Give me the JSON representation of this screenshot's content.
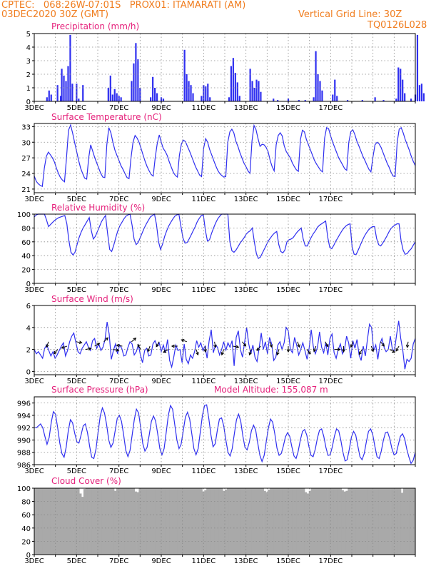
{
  "header": {
    "line1": "CPTEC:   068:26W-07:01S   PROX01: ITAMARATI (AM)",
    "line2": "03DEC2020 30Z (GMT)",
    "grid_note": "Vertical Grid Line: 30Z",
    "code": "TQ0126L028",
    "altitude": "Model Altitude: 155.087 m"
  },
  "colors": {
    "header": "#f07d1f",
    "title": "#e5217b",
    "series": "#2f2ff0",
    "cloud": "#a9a9a9",
    "arrows": "#000000"
  },
  "chart_data": [
    {
      "type": "bar",
      "title": "Precipitation (mm/h)",
      "xlabels": [
        "3DEC",
        "5DEC",
        "7DEC",
        "9DEC",
        "11DEC",
        "13DEC",
        "15DEC",
        "17DEC"
      ],
      "ylim": [
        0,
        5
      ],
      "yticks": [
        0,
        1,
        2,
        3,
        4,
        5
      ],
      "grid": true,
      "bars": [
        [
          0.1,
          0.3
        ],
        [
          0.2,
          0.8
        ],
        [
          0.3,
          0.5
        ],
        [
          0.6,
          1.2
        ],
        [
          0.75,
          0.4
        ],
        [
          0.8,
          2.4
        ],
        [
          0.9,
          1.9
        ],
        [
          1.0,
          1.5
        ],
        [
          1.1,
          2.6
        ],
        [
          1.2,
          4.9
        ],
        [
          1.3,
          1.3
        ],
        [
          1.5,
          1.3
        ],
        [
          1.6,
          0.2
        ],
        [
          1.8,
          1.2
        ],
        [
          3.0,
          1.0
        ],
        [
          3.1,
          1.9
        ],
        [
          3.2,
          0.5
        ],
        [
          3.3,
          0.9
        ],
        [
          3.4,
          0.6
        ],
        [
          3.5,
          0.4
        ],
        [
          3.6,
          0.3
        ],
        [
          4.1,
          1.5
        ],
        [
          4.2,
          2.8
        ],
        [
          4.3,
          4.3
        ],
        [
          4.4,
          3.1
        ],
        [
          4.5,
          1.0
        ],
        [
          5.0,
          0.3
        ],
        [
          5.1,
          1.8
        ],
        [
          5.2,
          1.0
        ],
        [
          5.3,
          0.6
        ],
        [
          5.5,
          0.3
        ],
        [
          5.6,
          0.2
        ],
        [
          6.6,
          3.8
        ],
        [
          6.7,
          2.0
        ],
        [
          6.8,
          1.5
        ],
        [
          6.9,
          1.2
        ],
        [
          7.0,
          0.6
        ],
        [
          7.4,
          0.4
        ],
        [
          7.5,
          1.2
        ],
        [
          7.6,
          1.1
        ],
        [
          7.7,
          1.3
        ],
        [
          7.8,
          0.3
        ],
        [
          8.7,
          0.3
        ],
        [
          8.8,
          2.6
        ],
        [
          8.9,
          3.2
        ],
        [
          9.0,
          2.1
        ],
        [
          9.1,
          1.4
        ],
        [
          9.2,
          0.4
        ],
        [
          9.7,
          2.4
        ],
        [
          9.8,
          1.5
        ],
        [
          9.9,
          1.0
        ],
        [
          10.0,
          1.6
        ],
        [
          10.1,
          1.5
        ],
        [
          10.2,
          0.7
        ],
        [
          10.8,
          0.2
        ],
        [
          11.0,
          0.1
        ],
        [
          11.5,
          0.2
        ],
        [
          12.0,
          0.1
        ],
        [
          12.3,
          0.1
        ],
        [
          12.7,
          0.3
        ],
        [
          12.8,
          3.7
        ],
        [
          12.9,
          2.0
        ],
        [
          13.0,
          1.5
        ],
        [
          13.1,
          0.8
        ],
        [
          13.6,
          0.5
        ],
        [
          13.7,
          1.6
        ],
        [
          13.8,
          0.4
        ],
        [
          14.3,
          0.1
        ],
        [
          15.0,
          0.1
        ],
        [
          15.6,
          0.3
        ],
        [
          16.0,
          0.1
        ],
        [
          16.6,
          0.2
        ],
        [
          16.7,
          2.5
        ],
        [
          16.8,
          2.4
        ],
        [
          16.9,
          1.6
        ],
        [
          17.0,
          0.6
        ],
        [
          17.3,
          0.2
        ],
        [
          17.5,
          0.5
        ],
        [
          17.6,
          4.9
        ],
        [
          17.7,
          1.2
        ],
        [
          17.8,
          1.3
        ],
        [
          17.9,
          0.6
        ]
      ]
    },
    {
      "type": "line",
      "title": "Surface Temperature (nC)",
      "xlabels": [
        "3DEC",
        "5DEC",
        "7DEC",
        "9DEC",
        "11DEC",
        "13DEC",
        "15DEC",
        "17DEC"
      ],
      "ylim": [
        20.3,
        33.6
      ],
      "yticks": [
        21,
        24,
        27,
        30,
        33
      ],
      "grid": true,
      "y": [
        23.5,
        22.5,
        22.0,
        21.7,
        21.5,
        25.0,
        27.3,
        28.1,
        27.6,
        27.0,
        26.2,
        25.0,
        24.0,
        23.2,
        22.7,
        22.4,
        27.0,
        32.3,
        33.3,
        31.8,
        30.0,
        28.3,
        26.5,
        25.0,
        24.0,
        23.1,
        22.9,
        27.0,
        29.5,
        28.3,
        27.0,
        26.0,
        25.0,
        24.0,
        23.3,
        23.2,
        29.5,
        32.8,
        31.8,
        30.0,
        28.5,
        27.5,
        26.5,
        25.5,
        24.8,
        24.0,
        23.2,
        23.0,
        27.0,
        30.0,
        31.3,
        30.8,
        30.0,
        28.8,
        27.5,
        26.3,
        25.3,
        24.5,
        23.8,
        23.5,
        27.0,
        29.7,
        31.4,
        30.0,
        28.8,
        28.2,
        27.4,
        26.2,
        25.2,
        24.2,
        23.6,
        23.3,
        27.5,
        29.7,
        30.4,
        30.1,
        29.2,
        28.3,
        27.3,
        26.3,
        25.3,
        24.5,
        23.7,
        23.4,
        28.8,
        30.7,
        30.0,
        28.6,
        27.6,
        26.5,
        25.5,
        24.6,
        24.0,
        23.6,
        23.3,
        23.4,
        30.0,
        32.0,
        32.5,
        31.8,
        30.2,
        29.2,
        28.0,
        27.0,
        26.0,
        25.3,
        24.5,
        24.0,
        30.2,
        33.2,
        32.4,
        30.7,
        29.2,
        29.6,
        29.5,
        29.0,
        28.2,
        26.5,
        25.3,
        24.5,
        29.5,
        31.3,
        31.8,
        31.2,
        29.3,
        28.2,
        27.6,
        27.0,
        26.0,
        25.3,
        24.7,
        24.4,
        30.5,
        32.3,
        32.0,
        30.5,
        29.5,
        28.5,
        27.5,
        26.5,
        25.8,
        25.2,
        24.6,
        24.3,
        30.8,
        32.8,
        32.6,
        31.2,
        30.0,
        29.0,
        28.0,
        27.0,
        26.3,
        25.6,
        24.9,
        24.6,
        30.0,
        32.0,
        32.4,
        31.5,
        30.2,
        29.3,
        28.3,
        27.3,
        26.5,
        25.6,
        24.8,
        24.3,
        27.2,
        29.5,
        30.0,
        29.7,
        29.0,
        28.0,
        27.0,
        26.0,
        25.2,
        24.2,
        23.5,
        23.4,
        30.0,
        32.5,
        32.8,
        31.8,
        30.5,
        29.5,
        28.5,
        27.3,
        26.3,
        25.5
      ]
    },
    {
      "type": "line",
      "title": "Relative Humidity (%)",
      "xlabels": [
        "3DEC",
        "5DEC",
        "7DEC",
        "9DEC",
        "11DEC",
        "13DEC",
        "15DEC",
        "17DEC"
      ],
      "ylim": [
        0,
        100
      ],
      "yticks": [
        0,
        20,
        40,
        60,
        80,
        100
      ],
      "grid": true,
      "y": [
        96,
        99,
        100,
        100,
        100,
        100,
        92,
        82,
        85,
        88,
        91,
        93,
        95,
        96,
        97,
        98,
        86,
        62,
        45,
        41,
        45,
        56,
        66,
        74,
        80,
        85,
        90,
        95,
        76,
        64,
        68,
        75,
        82,
        89,
        94,
        98,
        72,
        49,
        46,
        55,
        66,
        76,
        83,
        88,
        93,
        97,
        99,
        100,
        84,
        64,
        56,
        59,
        66,
        73,
        80,
        86,
        91,
        96,
        98,
        100,
        85,
        60,
        49,
        57,
        68,
        76,
        83,
        88,
        93,
        97,
        99,
        100,
        82,
        65,
        58,
        59,
        64,
        70,
        76,
        82,
        89,
        94,
        98,
        99,
        76,
        61,
        63,
        72,
        80,
        87,
        93,
        97,
        100,
        100,
        100,
        100,
        60,
        47,
        45,
        48,
        53,
        58,
        62,
        66,
        71,
        74,
        76,
        80,
        60,
        43,
        36,
        38,
        44,
        50,
        56,
        62,
        66,
        70,
        73,
        75,
        56,
        46,
        44,
        48,
        60,
        63,
        64,
        66,
        70,
        74,
        77,
        80,
        64,
        54,
        54,
        61,
        67,
        72,
        76,
        81,
        84,
        86,
        88,
        90,
        67,
        52,
        50,
        55,
        61,
        66,
        71,
        76,
        80,
        83,
        85,
        86,
        52,
        42,
        42,
        48,
        55,
        62,
        68,
        73,
        77,
        80,
        82,
        82,
        65,
        56,
        54,
        58,
        63,
        68,
        74,
        79,
        82,
        84,
        86,
        86,
        62,
        48,
        42,
        43,
        47,
        50,
        55,
        60
      ]
    },
    {
      "type": "line",
      "title": "Surface Wind (m/s)",
      "xlabels": [
        "3DEC",
        "5DEC",
        "7DEC",
        "9DEC",
        "11DEC",
        "13DEC",
        "15DEC",
        "17DEC"
      ],
      "ylim": [
        -0.3,
        6
      ],
      "yticks": [
        0,
        2,
        4,
        6
      ],
      "grid": true,
      "y": [
        2.0,
        1.6,
        1.8,
        1.5,
        1.2,
        2.1,
        2.4,
        1.9,
        1.4,
        1.8,
        1.2,
        1.5,
        1.9,
        2.3,
        2.6,
        1.4,
        1.9,
        2.7,
        3.2,
        3.5,
        2.6,
        1.8,
        1.6,
        2.1,
        2.4,
        2.7,
        2.2,
        1.9,
        2.8,
        3.0,
        2.1,
        2.5,
        1.9,
        2.2,
        2.9,
        4.5,
        3.4,
        1.1,
        1.9,
        2.5,
        1.6,
        2.4,
        2.1,
        1.4,
        1.5,
        2.2,
        2.7,
        2.5,
        1.5,
        1.8,
        2.4,
        1.5,
        0.8,
        1.9,
        2.1,
        1.4,
        1.5,
        2.5,
        2.8,
        2.3,
        2.6,
        1.8,
        2.4,
        1.7,
        2.9,
        1.0,
        0.4,
        1.3,
        2.4,
        1.9,
        2.0,
        0.8,
        2.5,
        1.1,
        0.7,
        1.5,
        1.2,
        1.8,
        2.8,
        2.2,
        2.6,
        1.9,
        2.3,
        1.2,
        2.8,
        3.8,
        1.7,
        2.4,
        2.2,
        1.5,
        2.0,
        2.7,
        1.9,
        2.6,
        2.2,
        2.8,
        0.5,
        3.1,
        3.7,
        2.0,
        1.3,
        2.6,
        4.0,
        2.5,
        1.6,
        2.4,
        1.3,
        0.9,
        2.1,
        3.5,
        2.0,
        2.7,
        1.6,
        3.1,
        2.5,
        1.0,
        1.3,
        2.4,
        2.7,
        2.0,
        2.6,
        4.0,
        3.7,
        2.0,
        1.7,
        3.1,
        2.4,
        1.5,
        2.0,
        2.6,
        1.9,
        1.1,
        2.1,
        3.8,
        2.3,
        1.6,
        2.2,
        3.6,
        2.2,
        1.7,
        2.6,
        1.5,
        3.0,
        3.4,
        1.7,
        1.2,
        2.0,
        2.5,
        1.6,
        2.0,
        3.2,
        2.6,
        1.2,
        2.8,
        2.1,
        2.9,
        1.5,
        1.0,
        2.3,
        1.4,
        2.9,
        4.3,
        4.0,
        1.9,
        2.4,
        1.1,
        2.5,
        3.0,
        2.2,
        1.8,
        2.0,
        3.2,
        2.0,
        1.9,
        3.3,
        4.6,
        3.0,
        1.9,
        0.2,
        1.1,
        0.9,
        1.2,
        2.5,
        3.0
      ]
    },
    {
      "type": "line",
      "title": "Surface Pressure (hPa)",
      "xlabels": [
        "3DEC",
        "5DEC",
        "7DEC",
        "9DEC",
        "11DEC",
        "13DEC",
        "15DEC",
        "17DEC"
      ],
      "ylim": [
        986,
        997
      ],
      "yticks": [
        986,
        988,
        990,
        992,
        994,
        996
      ],
      "grid": true,
      "y": [
        992.0,
        992.0,
        992.3,
        992.6,
        992.0,
        990.6,
        989.3,
        990.4,
        992.9,
        994.6,
        994.2,
        992.0,
        989.5,
        987.8,
        987.2,
        988.8,
        991.5,
        993.3,
        992.8,
        991.1,
        989.7,
        989.5,
        990.8,
        992.3,
        992.6,
        991.2,
        989.0,
        987.2,
        987.0,
        988.5,
        991.3,
        993.9,
        995.2,
        994.4,
        992.5,
        990.0,
        988.8,
        989.5,
        991.5,
        993.5,
        994.0,
        993.0,
        990.8,
        988.3,
        987.3,
        988.3,
        990.8,
        993.3,
        995.0,
        994.4,
        992.0,
        989.4,
        988.2,
        988.8,
        990.8,
        993.0,
        993.9,
        993.1,
        991.0,
        988.6,
        987.6,
        988.6,
        991.3,
        994.0,
        995.6,
        995.0,
        992.5,
        990.0,
        988.6,
        989.3,
        991.5,
        993.7,
        994.5,
        993.4,
        991.0,
        988.6,
        987.6,
        988.6,
        991.3,
        994.0,
        995.6,
        995.7,
        993.5,
        990.8,
        988.9,
        989.4,
        991.6,
        993.4,
        993.6,
        992.3,
        990.0,
        988.0,
        987.4,
        988.6,
        991.0,
        993.3,
        994.2,
        993.0,
        990.6,
        988.8,
        988.4,
        989.6,
        991.5,
        992.4,
        991.6,
        989.5,
        987.5,
        986.5,
        987.5,
        989.8,
        992.0,
        993.4,
        992.9,
        991.0,
        988.7,
        987.5,
        987.8,
        989.0,
        990.5,
        991.2,
        990.6,
        988.9,
        987.4,
        987.0,
        988.2,
        990.0,
        991.4,
        991.7,
        990.8,
        989.0,
        987.5,
        987.3,
        988.5,
        990.3,
        991.6,
        991.8,
        990.6,
        988.8,
        987.5,
        987.6,
        988.9,
        990.6,
        991.8,
        991.5,
        990.0,
        988.0,
        986.6,
        986.8,
        988.5,
        990.5,
        991.4,
        990.8,
        989.0,
        987.3,
        986.8,
        987.8,
        989.7,
        991.4,
        991.8,
        990.9,
        989.0,
        987.3,
        987.0,
        988.2,
        990.0,
        991.2,
        991.3,
        990.2,
        988.6,
        987.6,
        987.8,
        989.2,
        990.6,
        991.0,
        990.2,
        988.5,
        987.2,
        986.2,
        986.7,
        988.0
      ]
    },
    {
      "type": "bar",
      "title": "Cloud Cover (%)",
      "xlabels": [
        "3DEC",
        "5DEC",
        "7DEC",
        "9DEC",
        "11DEC",
        "13DEC",
        "15DEC",
        "17DEC"
      ],
      "ylim": [
        0,
        100
      ],
      "yticks": [
        0,
        20,
        40,
        60,
        80,
        100
      ],
      "grid": true,
      "values": [
        100,
        100,
        100,
        100,
        100,
        100,
        100,
        100,
        100,
        100,
        100,
        100,
        100,
        100,
        100,
        100,
        100,
        100,
        100,
        100,
        100,
        100,
        92,
        87,
        99,
        100,
        100,
        100,
        100,
        100,
        100,
        100,
        100,
        100,
        100,
        100,
        100,
        100,
        100,
        96,
        100,
        100,
        100,
        100,
        100,
        100,
        100,
        100,
        100,
        95,
        94,
        100,
        100,
        100,
        100,
        100,
        100,
        100,
        100,
        100,
        100,
        100,
        100,
        100,
        100,
        100,
        100,
        100,
        100,
        100,
        100,
        100,
        100,
        100,
        100,
        100,
        100,
        100,
        100,
        100,
        100,
        100,
        95,
        97,
        100,
        100,
        100,
        100,
        100,
        100,
        100,
        100,
        96,
        98,
        100,
        100,
        100,
        100,
        100,
        100,
        100,
        100,
        100,
        100,
        100,
        100,
        100,
        100,
        100,
        100,
        100,
        100,
        96,
        94,
        98,
        100,
        100,
        100,
        100,
        100,
        100,
        100,
        100,
        100,
        100,
        100,
        100,
        100,
        100,
        100,
        100,
        100,
        94,
        92,
        96,
        100,
        100,
        100,
        100,
        100,
        100,
        100,
        100,
        100,
        100,
        100,
        100,
        100,
        100,
        100,
        97,
        95,
        96,
        100,
        100,
        100,
        100,
        100,
        100,
        100,
        100,
        100,
        100,
        100,
        100,
        100,
        100,
        100,
        100,
        100,
        100,
        100,
        100,
        100,
        100,
        100,
        100,
        100,
        100,
        93,
        100,
        100,
        100,
        100,
        100,
        100
      ]
    }
  ],
  "wind_arrows_deg": [
    200,
    220,
    250,
    100,
    80,
    60,
    45,
    100,
    280,
    50,
    330,
    200,
    210,
    240,
    270,
    290,
    160,
    180,
    170,
    200,
    100,
    140,
    200,
    220,
    160,
    200,
    180,
    160,
    140,
    200,
    150,
    90,
    180,
    200,
    210,
    160,
    140,
    120,
    210,
    190
  ]
}
